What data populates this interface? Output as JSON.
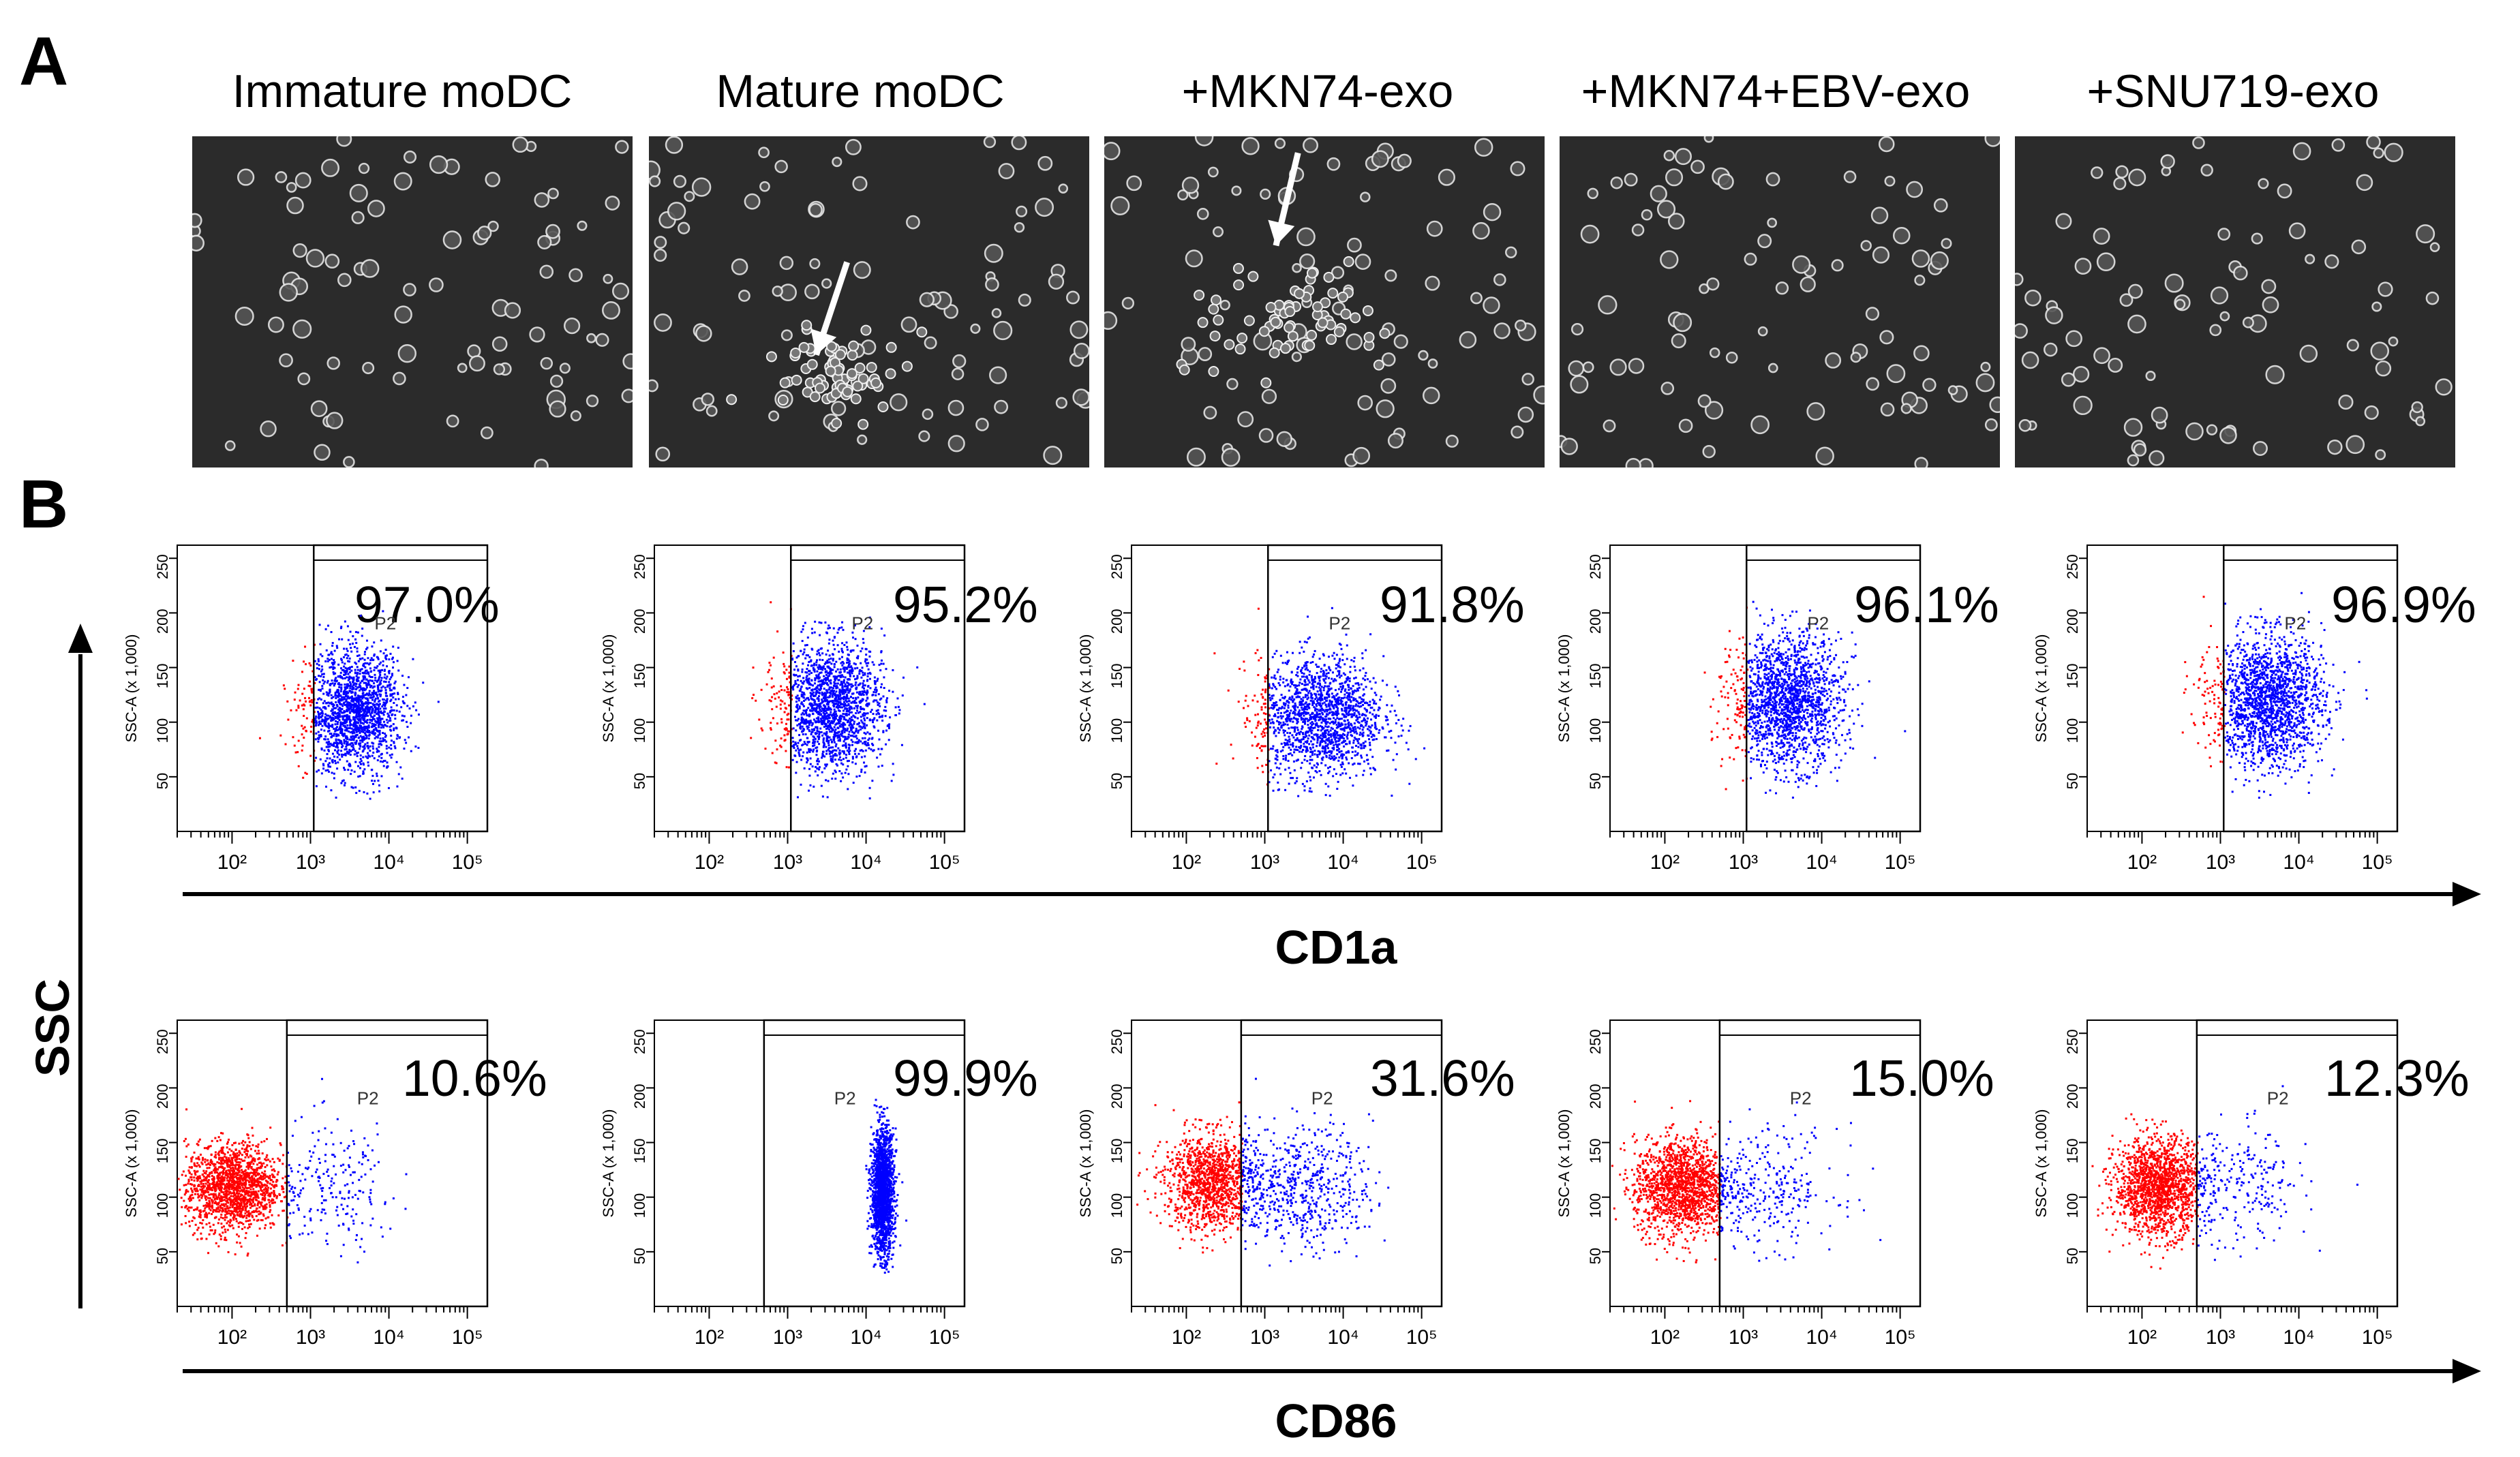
{
  "panel_a": {
    "letter": "A",
    "columns": [
      "Immature moDC",
      "Mature moDC",
      "+MKN74-exo",
      "+MKN74+EBV-exo",
      "+SNU719-exo"
    ]
  },
  "panel_b": {
    "letter": "B",
    "y_axis_title": "SSC",
    "colors": {
      "gated": "#0000ff",
      "ungated": "#ff0000",
      "frame": "#000000"
    }
  },
  "chart_data": [
    {
      "type": "scatter",
      "marker": "CD1a",
      "xlabel": "CD1a",
      "ylabel": "SSC",
      "plot_y_label": "SSC-A (x 1,000)",
      "x_scale": "log",
      "xlim": [
        20,
        180000
      ],
      "ylim": [
        0,
        262
      ],
      "x_ticks": [
        "10²",
        "10³",
        "10⁴",
        "10⁵"
      ],
      "y_ticks": [
        "50",
        "100",
        "150",
        "200",
        "250"
      ],
      "gate_name": "P2",
      "gate_x_threshold": 1100,
      "panels": [
        {
          "condition": "Immature moDC",
          "percent": "97.0%",
          "percent_value": 97.0
        },
        {
          "condition": "Mature moDC",
          "percent": "95.2%",
          "percent_value": 95.2
        },
        {
          "condition": "+MKN74-exo",
          "percent": "91.8%",
          "percent_value": 91.8
        },
        {
          "condition": "+MKN74+EBV-exo",
          "percent": "96.1%",
          "percent_value": 96.1
        },
        {
          "condition": "+SNU719-exo",
          "percent": "96.9%",
          "percent_value": 96.9
        }
      ]
    },
    {
      "type": "scatter",
      "marker": "CD86",
      "xlabel": "CD86",
      "ylabel": "SSC",
      "plot_y_label": "SSC-A (x 1,000)",
      "x_scale": "log",
      "xlim": [
        20,
        180000
      ],
      "ylim": [
        0,
        262
      ],
      "x_ticks": [
        "10²",
        "10³",
        "10⁴",
        "10⁵"
      ],
      "y_ticks": [
        "50",
        "100",
        "150",
        "200",
        "250"
      ],
      "gate_name": "P2",
      "gate_x_threshold": 500,
      "panels": [
        {
          "condition": "Immature moDC",
          "percent": "10.6%",
          "percent_value": 10.6
        },
        {
          "condition": "Mature moDC",
          "percent": "99.9%",
          "percent_value": 99.9
        },
        {
          "condition": "+MKN74-exo",
          "percent": "31.6%",
          "percent_value": 31.6
        },
        {
          "condition": "+MKN74+EBV-exo",
          "percent": "15.0%",
          "percent_value": 15.0
        },
        {
          "condition": "+SNU719-exo",
          "percent": "12.3%",
          "percent_value": 12.3
        }
      ]
    }
  ]
}
